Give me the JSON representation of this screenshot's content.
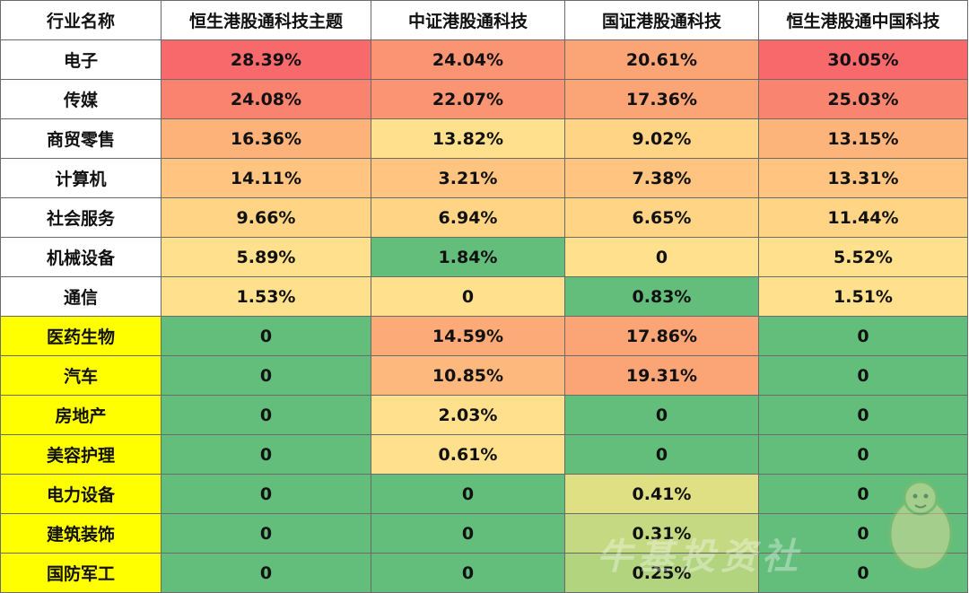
{
  "chart_data": {
    "type": "table",
    "header": [
      "行业名称",
      "恒生港股通科技主题",
      "中证港股通科技",
      "国证港股通科技",
      "恒生港股通中国科技"
    ],
    "rows": [
      {
        "label": "电子",
        "highlight": false,
        "values": [
          "28.39%",
          "24.04%",
          "20.61%",
          "30.05%"
        ],
        "colors": [
          "#f8696b",
          "#fa9473",
          "#fba475",
          "#f8696b"
        ]
      },
      {
        "label": "传媒",
        "highlight": false,
        "values": [
          "24.08%",
          "22.07%",
          "17.36%",
          "25.03%"
        ],
        "colors": [
          "#f9836f",
          "#fa9473",
          "#fba475",
          "#f98570"
        ]
      },
      {
        "label": "商贸零售",
        "highlight": false,
        "values": [
          "16.36%",
          "13.82%",
          "9.02%",
          "13.15%"
        ],
        "colors": [
          "#fdb27a",
          "#ffe08c",
          "#ffd485",
          "#fdb47b"
        ]
      },
      {
        "label": "计算机",
        "highlight": false,
        "values": [
          "14.11%",
          "3.21%",
          "7.38%",
          "13.31%"
        ],
        "colors": [
          "#fec480",
          "#fec480",
          "#fec480",
          "#fec480"
        ]
      },
      {
        "label": "社会服务",
        "highlight": false,
        "values": [
          "9.66%",
          "6.94%",
          "6.65%",
          "11.44%"
        ],
        "colors": [
          "#ffd485",
          "#ffd485",
          "#ffd485",
          "#ffd485"
        ]
      },
      {
        "label": "机械设备",
        "highlight": false,
        "values": [
          "5.89%",
          "1.84%",
          "0",
          "5.52%"
        ],
        "colors": [
          "#ffe08c",
          "#63be7b",
          "#ffe08c",
          "#ffe08c"
        ]
      },
      {
        "label": "通信",
        "highlight": false,
        "values": [
          "1.53%",
          "0",
          "0.83%",
          "1.51%"
        ],
        "colors": [
          "#ffe08c",
          "#ffe08c",
          "#63be7b",
          "#ffe08c"
        ]
      },
      {
        "label": "医药生物",
        "highlight": true,
        "values": [
          "0",
          "14.59%",
          "17.86%",
          "0"
        ],
        "colors": [
          "#63be7b",
          "#fcaa77",
          "#fba475",
          "#63be7b"
        ]
      },
      {
        "label": "汽车",
        "highlight": true,
        "values": [
          "0",
          "10.85%",
          "19.31%",
          "0"
        ],
        "colors": [
          "#63be7b",
          "#fdb87d",
          "#fba475",
          "#63be7b"
        ]
      },
      {
        "label": "房地产",
        "highlight": true,
        "values": [
          "0",
          "2.03%",
          "0",
          "0"
        ],
        "colors": [
          "#63be7b",
          "#ffe08c",
          "#63be7b",
          "#63be7b"
        ]
      },
      {
        "label": "美容护理",
        "highlight": true,
        "values": [
          "0",
          "0.61%",
          "0",
          "0"
        ],
        "colors": [
          "#63be7b",
          "#ffe08c",
          "#63be7b",
          "#63be7b"
        ]
      },
      {
        "label": "电力设备",
        "highlight": true,
        "values": [
          "0",
          "0",
          "0.41%",
          "0"
        ],
        "colors": [
          "#63be7b",
          "#63be7b",
          "#dfe083",
          "#63be7b"
        ]
      },
      {
        "label": "建筑装饰",
        "highlight": true,
        "values": [
          "0",
          "0",
          "0.31%",
          "0"
        ],
        "colors": [
          "#63be7b",
          "#63be7b",
          "#c4d981",
          "#63be7b"
        ]
      },
      {
        "label": "国防军工",
        "highlight": true,
        "values": [
          "0",
          "0",
          "0.25%",
          "0"
        ],
        "colors": [
          "#63be7b",
          "#63be7b",
          "#b2d47f",
          "#63be7b"
        ]
      }
    ],
    "highlight_color": "#ffff00"
  },
  "watermark": "牛基投资社"
}
